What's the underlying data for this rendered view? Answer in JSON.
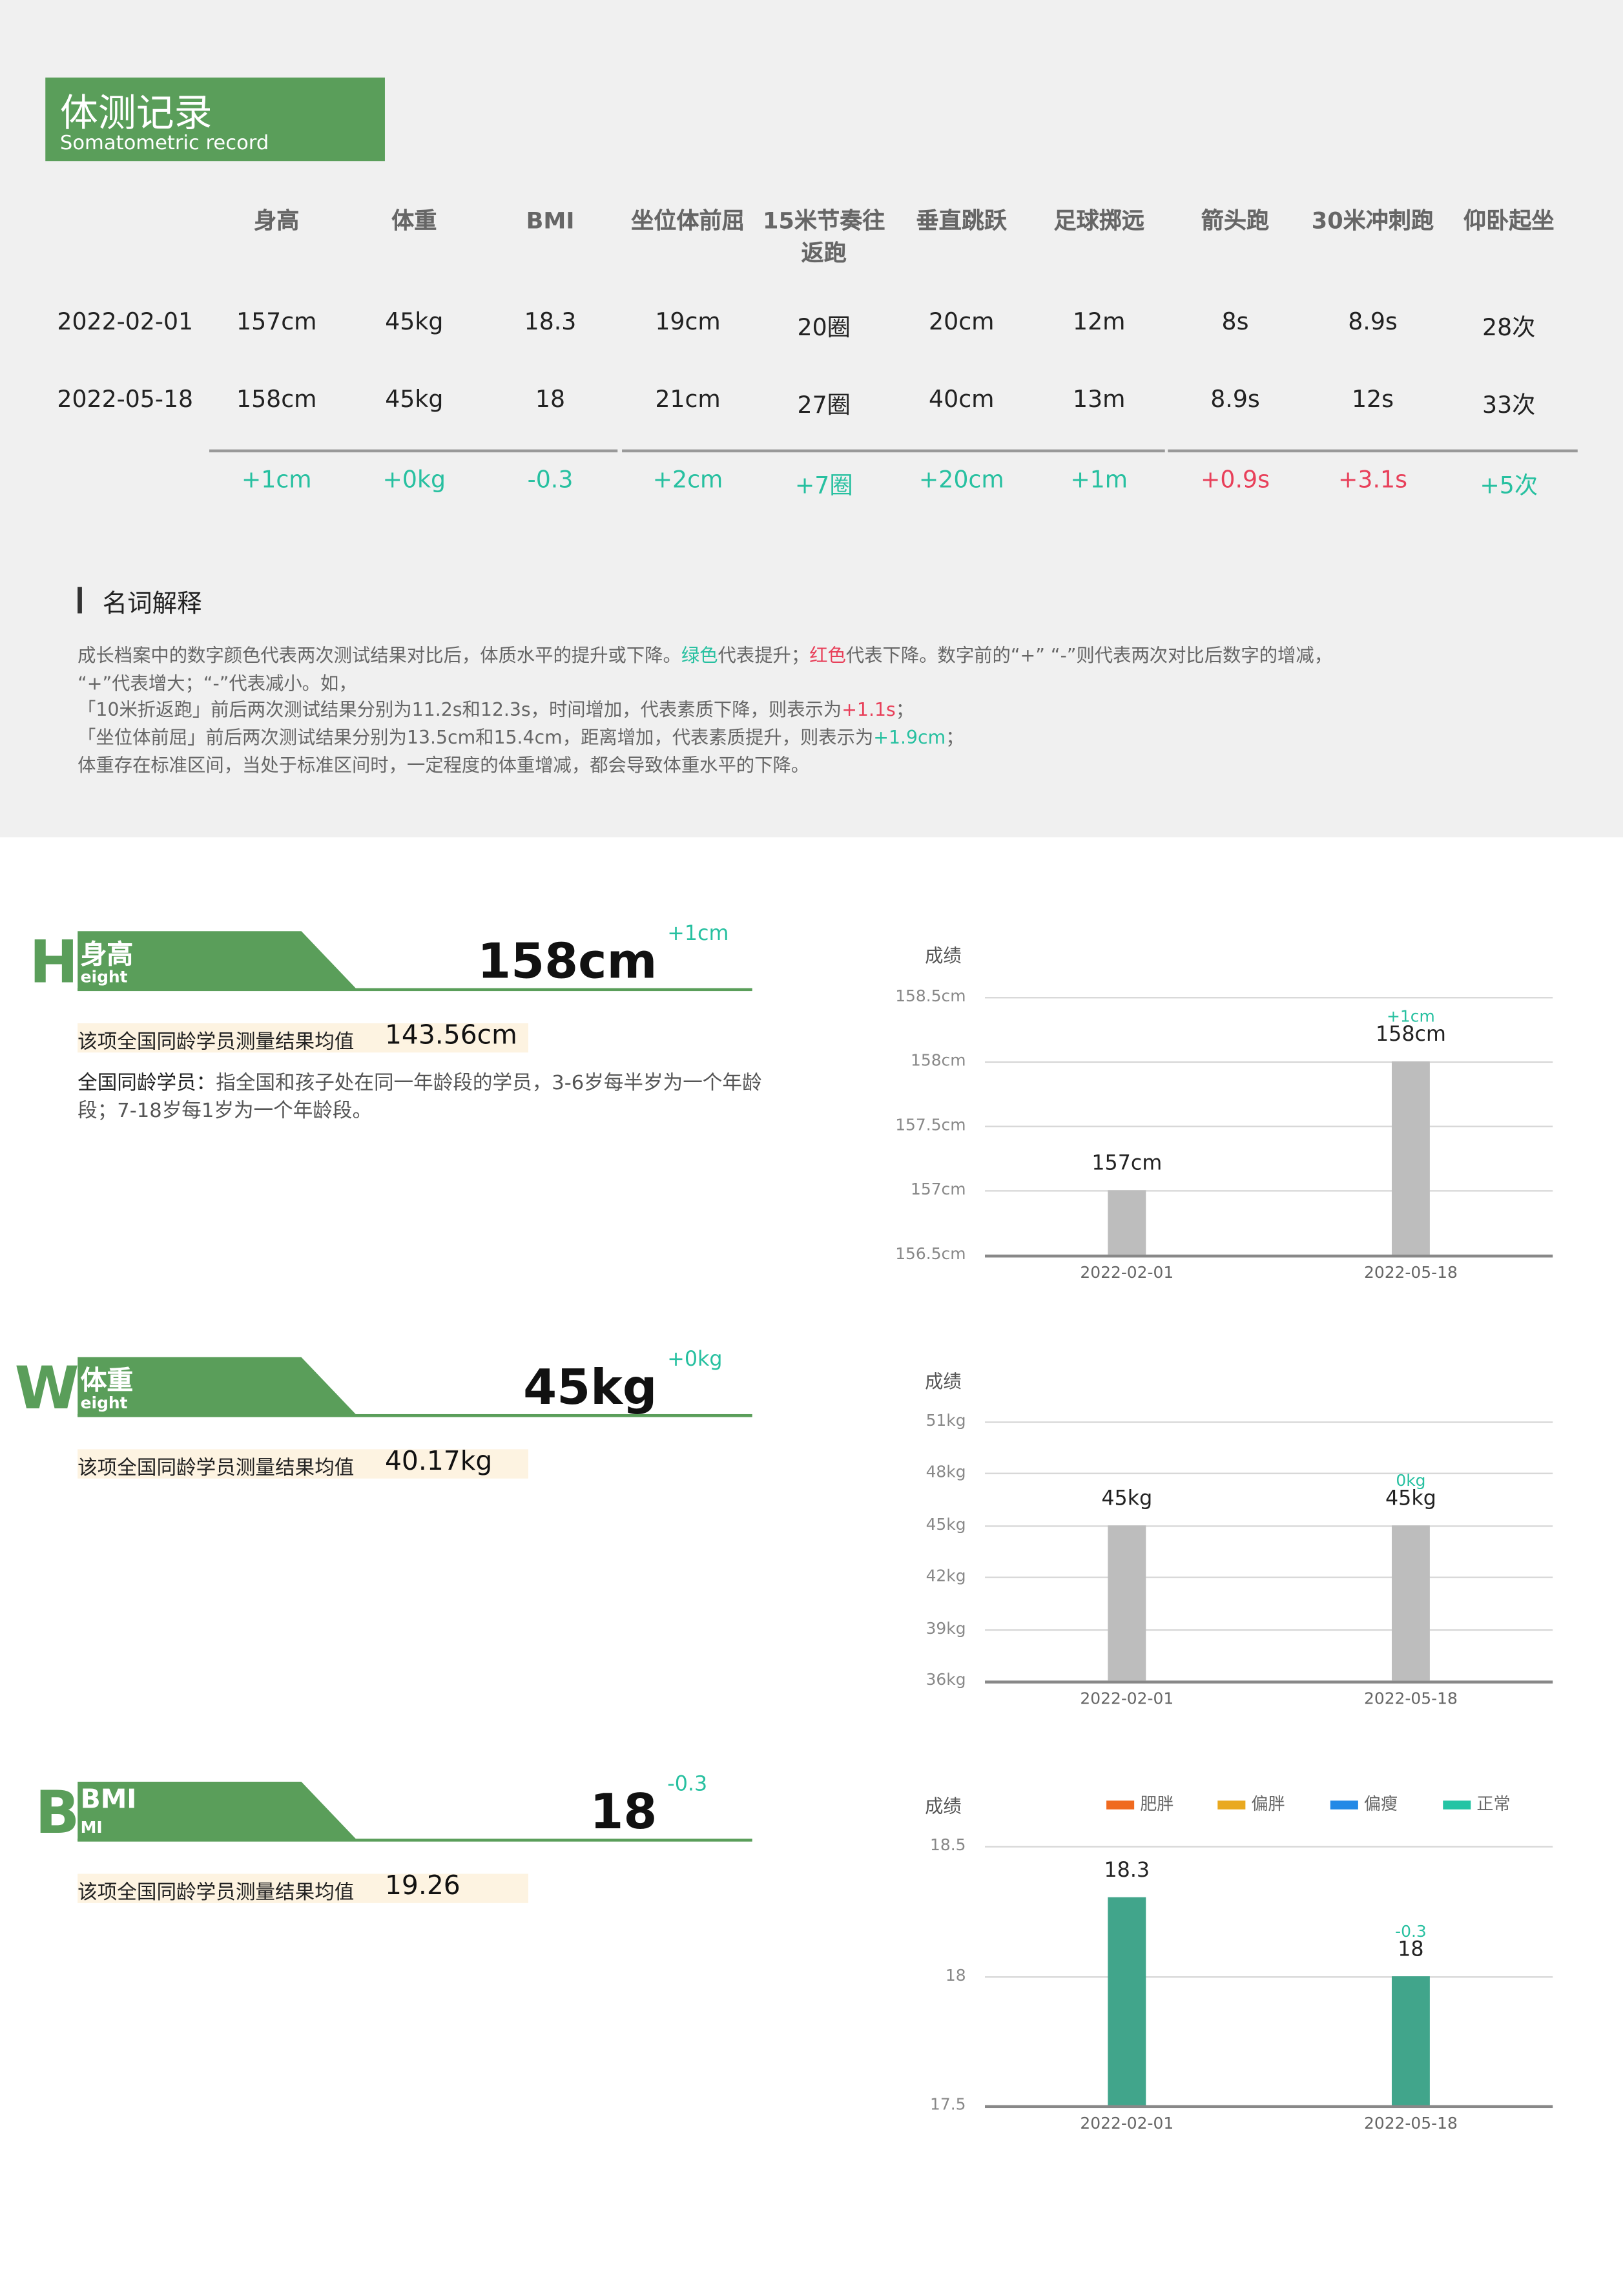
{
  "header": {
    "title": "体测记录",
    "subtitle": "Somatometric record"
  },
  "colors": {
    "brand": "#5a9e5a",
    "improve": "#27c0a0",
    "decline": "#e8405a",
    "bar_gray": "#bdbdbd",
    "bar_teal": "#41a58b"
  },
  "table": {
    "columns": [
      "身高",
      "体重",
      "BMI",
      "坐位体前屈",
      "15米节奏往返跑",
      "垂直跳跃",
      "足球掷远",
      "箭头跑",
      "30米冲刺跑",
      "仰卧起坐"
    ],
    "rows": [
      {
        "date": "2022-02-01",
        "values": [
          "157cm",
          "45kg",
          "18.3",
          "19cm",
          "20圈",
          "20cm",
          "12m",
          "8s",
          "8.9s",
          "28次"
        ]
      },
      {
        "date": "2022-05-18",
        "values": [
          "158cm",
          "45kg",
          "18",
          "21cm",
          "27圈",
          "40cm",
          "13m",
          "8.9s",
          "12s",
          "33次"
        ]
      }
    ],
    "deltas": [
      {
        "text": "+1cm",
        "trend": "up"
      },
      {
        "text": "+0kg",
        "trend": "up"
      },
      {
        "text": "-0.3",
        "trend": "up"
      },
      {
        "text": "+2cm",
        "trend": "up"
      },
      {
        "text": "+7圈",
        "trend": "up"
      },
      {
        "text": "+20cm",
        "trend": "up"
      },
      {
        "text": "+1m",
        "trend": "up"
      },
      {
        "text": "+0.9s",
        "trend": "down"
      },
      {
        "text": "+3.1s",
        "trend": "down"
      },
      {
        "text": "+5次",
        "trend": "up"
      }
    ]
  },
  "terms": {
    "title": "名词解释",
    "line1_a": "成长档案中的数字颜色代表两次测试结果对比后，体质水平的提升或下降。",
    "line1_green": "绿色",
    "line1_b": "代表提升；",
    "line1_red": "红色",
    "line1_c": "代表下降。数字前的“+” “-”则代表两次对比后数字的增减，",
    "line2": "“+”代表增大；“-”代表减小。如，",
    "line3_a": "「10米折返跑」前后两次测试结果分别为11.2s和12.3s，时间增加，代表素质下降，则表示为",
    "line3_val": "+1.1s",
    "line3_b": "；",
    "line4_a": "「坐位体前屈」前后两次测试结果分别为13.5cm和15.4cm，距离增加，代表素质提升，则表示为",
    "line4_val": "+1.9cm",
    "line4_b": "；",
    "line5": "体重存在标准区间，当处于标准区间时，一定程度的体重增减，都会导致体重水平的下降。"
  },
  "sections": [
    {
      "letter": "H",
      "title": "身高",
      "subtitle": "eight",
      "value": "158cm",
      "delta": "+1cm",
      "avg_label": "该项全国同龄学员测量结果均值",
      "avg_value": "143.56cm",
      "note_bold": "全国同龄学员：",
      "note": "指全国和孩子处在同一年龄段的学员，3-6岁每半岁为一个年龄段；7-18岁每1岁为一个年龄段。"
    },
    {
      "letter": "W",
      "title": "体重",
      "subtitle": "eight",
      "value": "45kg",
      "delta": "+0kg",
      "avg_label": "该项全国同龄学员测量结果均值",
      "avg_value": "40.17kg"
    },
    {
      "letter": "B",
      "title": "BMI",
      "subtitle": "MI",
      "value": "18",
      "delta": "-0.3",
      "avg_label": "该项全国同龄学员测量结果均值",
      "avg_value": "19.26"
    }
  ],
  "chart_data": [
    {
      "type": "bar",
      "ylabel": "成绩",
      "categories": [
        "2022-02-01",
        "2022-05-18"
      ],
      "values": [
        157,
        158
      ],
      "data_labels": [
        "157cm",
        "158cm"
      ],
      "delta_labels": [
        "",
        "+1cm"
      ],
      "yticks": [
        156.5,
        157,
        157.5,
        158,
        158.5
      ],
      "ytick_labels": [
        "156.5cm",
        "157cm",
        "157.5cm",
        "158cm",
        "158.5cm"
      ],
      "ylim": [
        156.5,
        158.5
      ],
      "grid": true,
      "bar_color": "#bdbdbd"
    },
    {
      "type": "bar",
      "ylabel": "成绩",
      "categories": [
        "2022-02-01",
        "2022-05-18"
      ],
      "values": [
        45,
        45
      ],
      "data_labels": [
        "45kg",
        "45kg"
      ],
      "delta_labels": [
        "",
        "0kg"
      ],
      "yticks": [
        36,
        39,
        42,
        45,
        48,
        51
      ],
      "ytick_labels": [
        "36kg",
        "39kg",
        "42kg",
        "45kg",
        "48kg",
        "51kg"
      ],
      "ylim": [
        36,
        51
      ],
      "grid": true,
      "bar_color": "#bdbdbd"
    },
    {
      "type": "bar",
      "ylabel": "成绩",
      "categories": [
        "2022-02-01",
        "2022-05-18"
      ],
      "values": [
        18.3,
        18
      ],
      "data_labels": [
        "18.3",
        "18"
      ],
      "delta_labels": [
        "",
        "-0.3"
      ],
      "yticks": [
        17.5,
        18,
        18.5
      ],
      "ytick_labels": [
        "17.5",
        "18",
        "18.5"
      ],
      "ylim": [
        17.5,
        18.5
      ],
      "grid": true,
      "bar_color": "#41a58b",
      "legend": [
        {
          "name": "肥胖",
          "color": "#f06a1f"
        },
        {
          "name": "偏胖",
          "color": "#e9a920"
        },
        {
          "name": "偏瘦",
          "color": "#2389e6"
        },
        {
          "name": "正常",
          "color": "#24c4a4"
        }
      ],
      "legend_position": "top"
    }
  ]
}
